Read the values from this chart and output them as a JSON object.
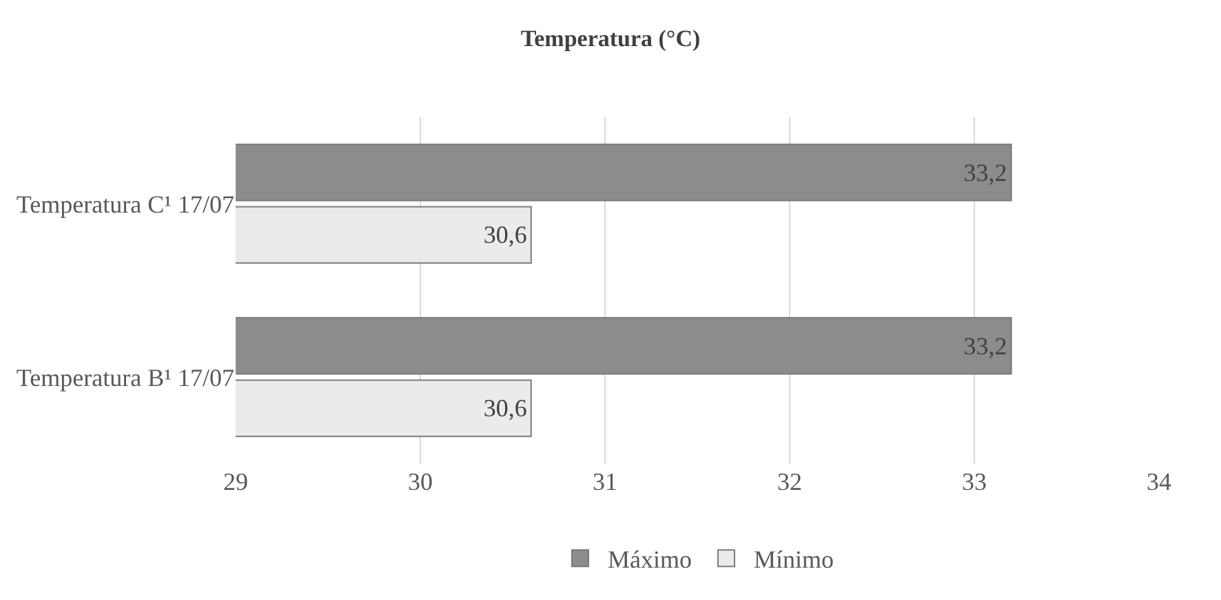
{
  "chart_data": {
    "type": "bar",
    "orientation": "horizontal",
    "title": "Temperatura (°C)",
    "categories": [
      "Temperatura C¹ 17/07",
      "Temperatura B¹ 17/07"
    ],
    "series": [
      {
        "name": "Máximo",
        "color": "#8c8c8c",
        "values": [
          33.2,
          33.2
        ],
        "value_labels": [
          "33,2",
          "33,2"
        ]
      },
      {
        "name": "Mínimo",
        "color": "#ebebeb",
        "values": [
          30.6,
          30.6
        ],
        "value_labels": [
          "30,6",
          "30,6"
        ]
      }
    ],
    "xlim": [
      29,
      34
    ],
    "xticks": [
      29,
      30,
      31,
      32,
      33,
      34
    ],
    "grid": "x",
    "legend": "bottom"
  }
}
